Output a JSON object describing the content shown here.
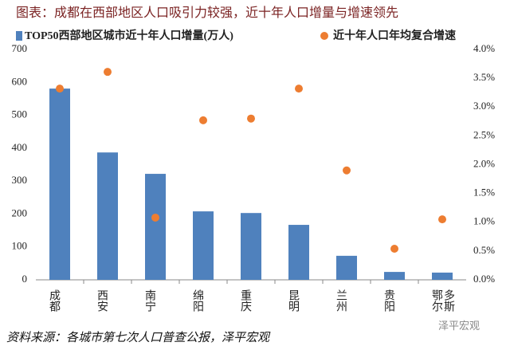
{
  "title": "图表：成都在西部地区人口吸引力较强，近十年人口增量与增速领先",
  "chart_data": {
    "type": "bar_dot",
    "categories": [
      "成都",
      "西安",
      "南宁",
      "绵阳",
      "重庆",
      "昆明",
      "兰州",
      "贵阳",
      "鄂尔多斯"
    ],
    "series": [
      {
        "name": "TOP50西部地区城市近十年人口增量(万人)",
        "color": "#4f81bd",
        "values": [
          581,
          387,
          322,
          208,
          203,
          167,
          73,
          24,
          22
        ]
      },
      {
        "name": "近十年人口年均复合增速",
        "color": "#ed7d31",
        "axis": "y2",
        "values": [
          3.32,
          3.61,
          1.08,
          2.77,
          2.8,
          3.32,
          1.9,
          0.54,
          1.05
        ]
      }
    ],
    "ylim": [
      0,
      700
    ],
    "yticks": [
      0,
      100,
      200,
      300,
      400,
      500,
      600,
      700
    ],
    "y2lim": [
      0,
      4
    ],
    "y2ticks": [
      {
        "value": 0,
        "label": "0.0%"
      },
      {
        "value": 0.5,
        "label": "0.5%"
      },
      {
        "value": 1,
        "label": "1.0%"
      },
      {
        "value": 1.5,
        "label": "1.5%"
      },
      {
        "value": 2,
        "label": "2.0%"
      },
      {
        "value": 2.5,
        "label": "2.5%"
      },
      {
        "value": 3,
        "label": "3.0%"
      },
      {
        "value": 3.5,
        "label": "3.5%"
      },
      {
        "value": 4,
        "label": "4.0%"
      }
    ]
  },
  "source": "资料来源：各城市第七次人口普查公报，泽平宏观",
  "watermark": "泽平宏观"
}
